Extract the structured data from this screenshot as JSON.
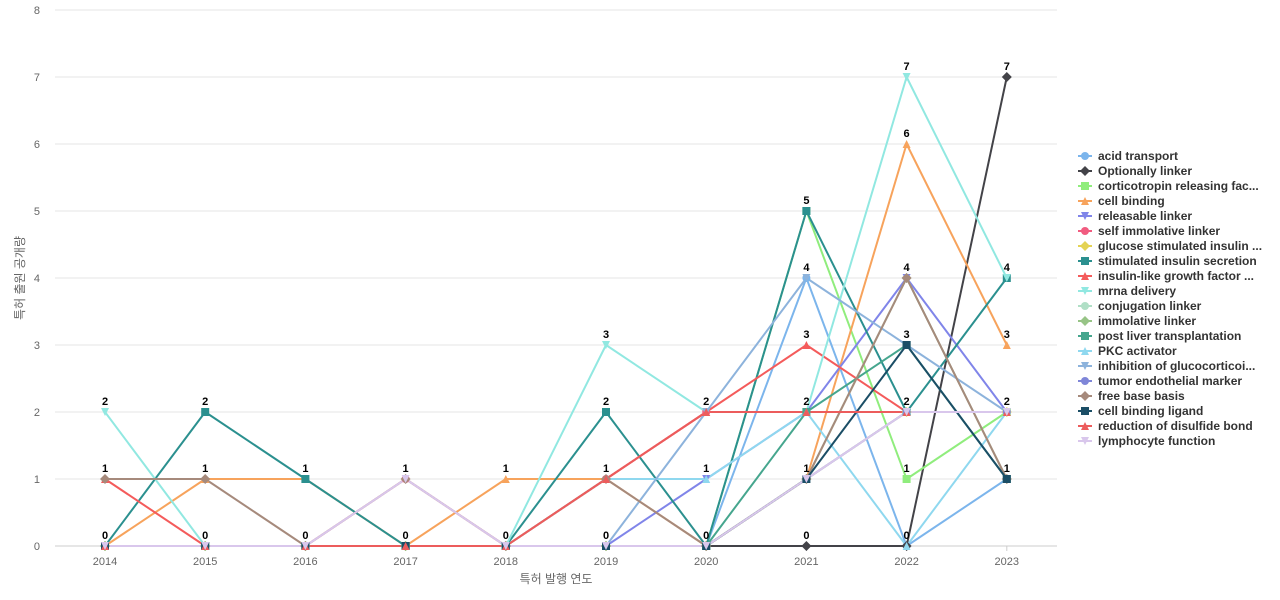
{
  "chart_data": {
    "type": "line",
    "xlabel": "특허 발행 연도",
    "ylabel": "특허 출원 공개량",
    "ylim": [
      0,
      8
    ],
    "yticks": [
      0,
      1,
      2,
      3,
      4,
      5,
      6,
      7,
      8
    ],
    "x": [
      "2014",
      "2015",
      "2016",
      "2017",
      "2018",
      "2019",
      "2020",
      "2021",
      "2022",
      "2023"
    ],
    "legend_position": "right",
    "grid": true,
    "series": [
      {
        "name": "acid transport",
        "color": "#7cb5ec",
        "marker": "circle",
        "values": [
          0,
          0,
          0,
          0,
          0,
          0,
          0,
          4,
          0,
          1
        ]
      },
      {
        "name": "Optionally linker",
        "color": "#434348",
        "marker": "diamond",
        "values": [
          0,
          0,
          0,
          0,
          0,
          0,
          0,
          0,
          0,
          7
        ]
      },
      {
        "name": "corticotropin releasing fac...",
        "color": "#90ed7d",
        "marker": "square",
        "values": [
          0,
          0,
          0,
          0,
          0,
          0,
          0,
          5,
          1,
          2
        ]
      },
      {
        "name": "cell binding",
        "color": "#f7a35c",
        "marker": "triangle",
        "values": [
          0,
          1,
          1,
          0,
          1,
          1,
          0,
          1,
          6,
          3
        ]
      },
      {
        "name": "releasable linker",
        "color": "#8085e9",
        "marker": "triangle-down",
        "values": [
          0,
          0,
          0,
          0,
          0,
          0,
          1,
          2,
          4,
          2
        ]
      },
      {
        "name": "self immolative linker",
        "color": "#f15c80",
        "marker": "circle",
        "values": [
          0,
          0,
          0,
          1,
          0,
          1,
          2,
          2,
          2,
          2
        ]
      },
      {
        "name": "glucose stimulated insulin ...",
        "color": "#e4d354",
        "marker": "diamond",
        "values": [
          0,
          0,
          0,
          0,
          0,
          0,
          0,
          1,
          2,
          2
        ]
      },
      {
        "name": "stimulated insulin secretion",
        "color": "#2b908f",
        "marker": "square",
        "values": [
          0,
          2,
          1,
          0,
          0,
          2,
          0,
          5,
          2,
          4
        ]
      },
      {
        "name": "insulin-like growth factor ...",
        "color": "#f45b5b",
        "marker": "triangle",
        "values": [
          1,
          0,
          0,
          0,
          0,
          1,
          2,
          3,
          2,
          2
        ]
      },
      {
        "name": "mrna delivery",
        "color": "#91e8e1",
        "marker": "triangle-down",
        "values": [
          2,
          0,
          0,
          0,
          0,
          3,
          2,
          2,
          7,
          4
        ]
      },
      {
        "name": "conjugation linker",
        "color": "#b0dfc6",
        "marker": "circle",
        "values": [
          0,
          0,
          0,
          0,
          0,
          0,
          0,
          1,
          2,
          2
        ]
      },
      {
        "name": "immolative linker",
        "color": "#97c486",
        "marker": "diamond",
        "values": [
          0,
          0,
          0,
          0,
          0,
          0,
          0,
          1,
          4,
          1
        ]
      },
      {
        "name": "post liver transplantation",
        "color": "#46a68e",
        "marker": "square",
        "values": [
          0,
          0,
          0,
          0,
          0,
          0,
          0,
          2,
          3,
          1
        ]
      },
      {
        "name": "PKC activator",
        "color": "#8fd8ef",
        "marker": "triangle",
        "values": [
          0,
          0,
          0,
          0,
          0,
          1,
          1,
          2,
          0,
          2
        ]
      },
      {
        "name": "inhibition of glucocorticoi...",
        "color": "#8db3dc",
        "marker": "triangle-down",
        "values": [
          0,
          0,
          0,
          0,
          0,
          0,
          2,
          4,
          3,
          2
        ]
      },
      {
        "name": "tumor endothelial marker",
        "color": "#7f86d8",
        "marker": "circle",
        "values": [
          0,
          0,
          0,
          0,
          0,
          0,
          0,
          1,
          2,
          2
        ]
      },
      {
        "name": "free base basis",
        "color": "#a68a7c",
        "marker": "diamond",
        "values": [
          1,
          1,
          0,
          1,
          0,
          1,
          0,
          1,
          4,
          1
        ]
      },
      {
        "name": "cell binding ligand",
        "color": "#1b4e66",
        "marker": "square",
        "values": [
          0,
          0,
          0,
          0,
          0,
          0,
          0,
          1,
          3,
          1
        ]
      },
      {
        "name": "reduction of disulfide bond",
        "color": "#ec5c5c",
        "marker": "triangle",
        "values": [
          0,
          0,
          0,
          0,
          0,
          1,
          2,
          2,
          2,
          2
        ]
      },
      {
        "name": "lymphocyte function",
        "color": "#d9c7ec",
        "marker": "triangle-down",
        "values": [
          0,
          0,
          0,
          1,
          0,
          0,
          0,
          1,
          2,
          2
        ]
      }
    ],
    "data_labels": [
      {
        "x": "2014",
        "text": "2",
        "value": 2
      },
      {
        "x": "2014",
        "text": "1",
        "value": 1
      },
      {
        "x": "2014",
        "text": "0",
        "value": 0
      },
      {
        "x": "2015",
        "text": "2",
        "value": 2
      },
      {
        "x": "2015",
        "text": "1",
        "value": 1
      },
      {
        "x": "2015",
        "text": "0",
        "value": 0
      },
      {
        "x": "2016",
        "text": "1",
        "value": 1
      },
      {
        "x": "2016",
        "text": "0",
        "value": 0
      },
      {
        "x": "2017",
        "text": "1",
        "value": 1
      },
      {
        "x": "2017",
        "text": "0",
        "value": 0
      },
      {
        "x": "2018",
        "text": "1",
        "value": 1
      },
      {
        "x": "2018",
        "text": "0",
        "value": 0
      },
      {
        "x": "2019",
        "text": "3",
        "value": 3
      },
      {
        "x": "2019",
        "text": "2",
        "value": 2
      },
      {
        "x": "2019",
        "text": "1",
        "value": 1
      },
      {
        "x": "2019",
        "text": "0",
        "value": 0
      },
      {
        "x": "2020",
        "text": "2",
        "value": 2
      },
      {
        "x": "2020",
        "text": "1",
        "value": 1
      },
      {
        "x": "2020",
        "text": "0",
        "value": 0
      },
      {
        "x": "2021",
        "text": "5",
        "value": 5
      },
      {
        "x": "2021",
        "text": "4",
        "value": 4
      },
      {
        "x": "2021",
        "text": "3",
        "value": 3
      },
      {
        "x": "2021",
        "text": "2",
        "value": 2
      },
      {
        "x": "2021",
        "text": "1",
        "value": 1
      },
      {
        "x": "2021",
        "text": "0",
        "value": 0
      },
      {
        "x": "2022",
        "text": "7",
        "value": 7
      },
      {
        "x": "2022",
        "text": "6",
        "value": 6
      },
      {
        "x": "2022",
        "text": "4",
        "value": 4
      },
      {
        "x": "2022",
        "text": "3",
        "value": 3
      },
      {
        "x": "2022",
        "text": "2",
        "value": 2
      },
      {
        "x": "2022",
        "text": "1",
        "value": 1
      },
      {
        "x": "2022",
        "text": "0",
        "value": 0
      },
      {
        "x": "2023",
        "text": "7",
        "value": 7
      },
      {
        "x": "2023",
        "text": "4",
        "value": 4
      },
      {
        "x": "2023",
        "text": "3",
        "value": 3
      },
      {
        "x": "2023",
        "text": "2",
        "value": 2
      },
      {
        "x": "2023",
        "text": "1",
        "value": 1
      }
    ]
  }
}
